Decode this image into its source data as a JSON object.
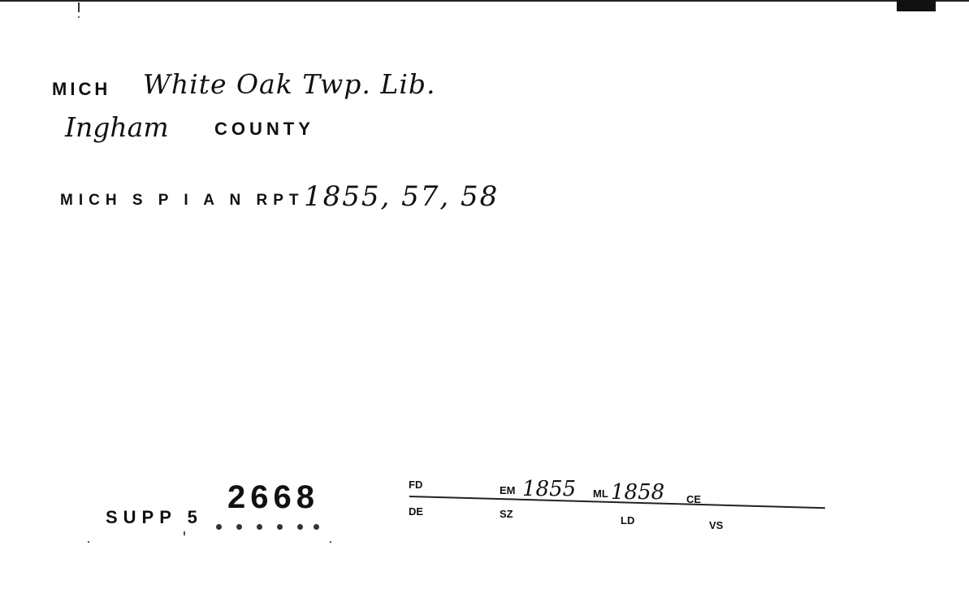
{
  "header": {
    "state": "MICH",
    "library": "White Oak Twp. Lib.",
    "county": "Ingham",
    "county_label": "COUNTY"
  },
  "report": {
    "label": "MICH S P I A N RPT",
    "years": "1855, 57, 58"
  },
  "supplement": {
    "label": "SUPP 5",
    "number": "2668"
  },
  "fields": {
    "fd": "FD",
    "de": "DE",
    "em_label": "EM",
    "em_value": "1855",
    "sz": "SZ",
    "ml_label": "ML",
    "ml_value": "1858",
    "ld": "LD",
    "ce": "CE",
    "vs": "VS"
  }
}
